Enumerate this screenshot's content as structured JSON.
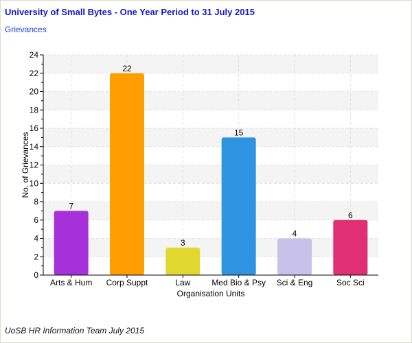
{
  "header": {
    "title": "University of Small Bytes - One Year Period to 31 July 2015",
    "subtitle": "Grievances"
  },
  "footer": {
    "credit": "UoSB HR Information Team July 2015"
  },
  "colors": {
    "title": "#1515c8",
    "subtitle": "#1e3fcf",
    "band": "#f4f4f4",
    "grid": "#e0e0e0"
  },
  "chart_data": {
    "type": "bar",
    "title": "University of Small Bytes - One Year Period to 31 July 2015",
    "subtitle": "Grievances",
    "xlabel": "Organisation Units",
    "ylabel": "No. of Grievances",
    "ylim": [
      0,
      24
    ],
    "ytick_step": 2,
    "yticks": [
      "0",
      "2",
      "4",
      "6",
      "8",
      "10",
      "12",
      "14",
      "16",
      "18",
      "20",
      "22",
      "24"
    ],
    "grid": true,
    "categories": [
      "Arts & Hum",
      "Corp Suppt",
      "Law",
      "Med Bio & Psy",
      "Sci & Eng",
      "Soc Sci"
    ],
    "values": [
      7,
      22,
      3,
      15,
      4,
      6
    ],
    "data_labels": [
      "7",
      "22",
      "3",
      "15",
      "4",
      "6"
    ],
    "bar_colors": [
      "#a630d9",
      "#ff9e00",
      "#e1d92f",
      "#2e94e2",
      "#c8c2ea",
      "#e02f73"
    ]
  }
}
